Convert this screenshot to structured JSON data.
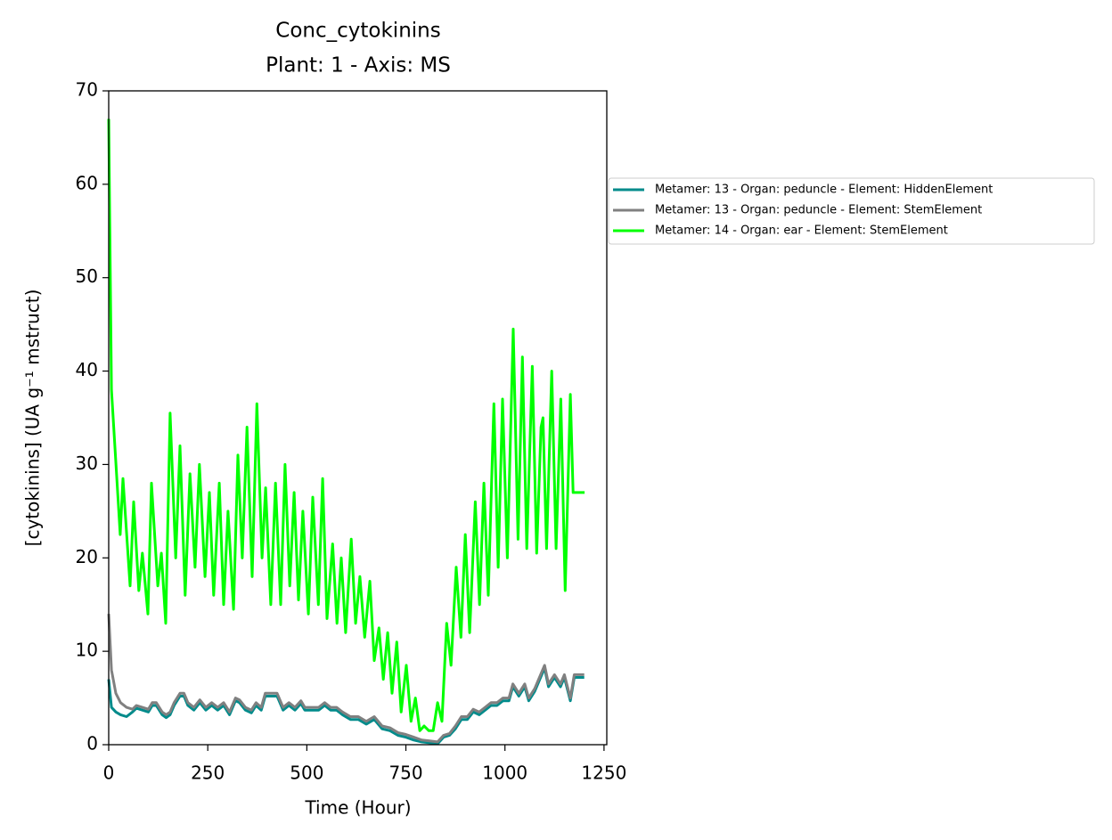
{
  "chart_data": {
    "type": "line",
    "title": "Conc_cytokinins",
    "subtitle": "Plant: 1 - Axis: MS",
    "x_label": "Time (Hour)",
    "y_label": "[cytokinins] (UA g⁻¹ mstruct)",
    "xlim": [
      0,
      1257
    ],
    "ylim": [
      0,
      70
    ],
    "xticks": [
      0,
      250,
      500,
      750,
      1000,
      1250
    ],
    "yticks": [
      0,
      10,
      20,
      30,
      40,
      50,
      60,
      70
    ],
    "grid": false,
    "legend": "outside upper right",
    "series": [
      {
        "name": "Metamer: 13 - Organ: peduncle - Element: HiddenElement",
        "color": "#008b8b",
        "x": [
          0,
          7,
          18,
          30,
          45,
          60,
          70,
          85,
          100,
          110,
          120,
          135,
          145,
          155,
          165,
          180,
          190,
          200,
          215,
          230,
          245,
          260,
          275,
          290,
          305,
          320,
          330,
          345,
          360,
          372,
          385,
          395,
          410,
          425,
          440,
          455,
          470,
          485,
          495,
          510,
          530,
          545,
          560,
          575,
          590,
          610,
          630,
          650,
          670,
          690,
          710,
          730,
          750,
          770,
          790,
          810,
          830,
          845,
          860,
          875,
          890,
          905,
          920,
          935,
          950,
          965,
          980,
          995,
          1010,
          1020,
          1035,
          1050,
          1060,
          1075,
          1090,
          1100,
          1110,
          1125,
          1140,
          1150,
          1165,
          1175,
          1200
        ],
        "values": [
          7,
          4,
          3.5,
          3.2,
          3,
          3.5,
          3.9,
          3.7,
          3.5,
          4.2,
          4.2,
          3.2,
          2.9,
          3.2,
          4.2,
          5.2,
          5.2,
          4.2,
          3.7,
          4.5,
          3.7,
          4.2,
          3.7,
          4.2,
          3.2,
          4.7,
          4.5,
          3.7,
          3.4,
          4.2,
          3.7,
          5.2,
          5.2,
          5.2,
          3.7,
          4.2,
          3.7,
          4.4,
          3.7,
          3.7,
          3.7,
          4.2,
          3.7,
          3.7,
          3.2,
          2.7,
          2.7,
          2.2,
          2.7,
          1.7,
          1.5,
          1,
          0.8,
          0.5,
          0.3,
          0.2,
          0.1,
          0.8,
          1,
          1.7,
          2.7,
          2.7,
          3.5,
          3.2,
          3.7,
          4.2,
          4.2,
          4.7,
          4.7,
          6.2,
          5.2,
          6.2,
          4.7,
          5.7,
          7.2,
          8.2,
          6.2,
          7.2,
          6.2,
          7.2,
          4.7,
          7.2,
          7.2
        ]
      },
      {
        "name": "Metamer: 13 - Organ: peduncle - Element: StemElement",
        "color": "#808080",
        "x": [
          0,
          7,
          18,
          30,
          45,
          60,
          70,
          85,
          100,
          110,
          120,
          135,
          145,
          155,
          165,
          180,
          190,
          200,
          215,
          230,
          245,
          260,
          275,
          290,
          305,
          320,
          330,
          345,
          360,
          372,
          385,
          395,
          410,
          425,
          440,
          455,
          470,
          485,
          495,
          510,
          530,
          545,
          560,
          575,
          590,
          610,
          630,
          650,
          670,
          690,
          710,
          730,
          750,
          770,
          790,
          810,
          830,
          845,
          860,
          875,
          890,
          905,
          920,
          935,
          950,
          965,
          980,
          995,
          1010,
          1020,
          1035,
          1050,
          1060,
          1075,
          1090,
          1100,
          1110,
          1125,
          1140,
          1150,
          1165,
          1175,
          1200
        ],
        "values": [
          14,
          8,
          5.5,
          4.5,
          4,
          3.8,
          4.2,
          4,
          3.8,
          4.5,
          4.5,
          3.5,
          3.2,
          3.5,
          4.5,
          5.5,
          5.5,
          4.5,
          4,
          4.8,
          4,
          4.5,
          4,
          4.5,
          3.5,
          5,
          4.8,
          4,
          3.7,
          4.5,
          4,
          5.5,
          5.5,
          5.5,
          4,
          4.5,
          4,
          4.7,
          4,
          4,
          4,
          4.5,
          4,
          4,
          3.5,
          3,
          3,
          2.5,
          3,
          2,
          1.8,
          1.3,
          1.1,
          0.8,
          0.5,
          0.4,
          0.3,
          1,
          1.2,
          2,
          3,
          3,
          3.8,
          3.5,
          4,
          4.5,
          4.5,
          5,
          5,
          6.5,
          5.5,
          6.5,
          5,
          6,
          7.5,
          8.5,
          6.5,
          7.5,
          6.5,
          7.5,
          5,
          7.5,
          7.5
        ]
      },
      {
        "name": "Metamer: 14 - Organ: ear - Element: StemElement",
        "color": "#00ff00",
        "x": [
          0,
          7,
          29,
          36,
          54,
          63,
          76,
          85,
          99,
          108,
          124,
          133,
          144,
          155,
          169,
          180,
          193,
          205,
          218,
          229,
          243,
          254,
          265,
          279,
          290,
          301,
          315,
          326,
          337,
          349,
          362,
          374,
          387,
          396,
          409,
          421,
          434,
          445,
          457,
          468,
          479,
          490,
          504,
          515,
          529,
          540,
          551,
          565,
          576,
          587,
          598,
          612,
          623,
          634,
          646,
          659,
          670,
          682,
          693,
          704,
          715,
          727,
          738,
          751,
          763,
          774,
          785,
          796,
          808,
          819,
          830,
          841,
          853,
          864,
          877,
          889,
          900,
          911,
          925,
          936,
          947,
          958,
          972,
          983,
          994,
          1006,
          1021,
          1033,
          1044,
          1055,
          1069,
          1080,
          1091,
          1096,
          1105,
          1118,
          1129,
          1141,
          1152,
          1165,
          1172,
          1201
        ],
        "values": [
          67,
          38,
          22.5,
          28.5,
          17,
          26,
          16.5,
          20.5,
          14,
          28,
          17,
          20.5,
          13,
          35.5,
          20,
          32,
          16,
          29,
          19,
          30,
          18,
          27,
          16,
          28,
          15,
          25,
          14.5,
          31,
          20,
          34,
          18,
          36.5,
          20,
          27.5,
          15,
          28,
          15,
          30,
          17,
          27,
          15.5,
          25,
          14,
          26.5,
          15,
          28.5,
          13.5,
          21.5,
          13,
          20,
          12,
          22,
          13,
          18,
          11.5,
          17.5,
          9,
          12.5,
          7,
          12,
          5.5,
          11,
          3.5,
          8.5,
          2.5,
          5,
          1.5,
          2,
          1.5,
          1.5,
          4.5,
          2.5,
          13,
          8.5,
          19,
          11.5,
          22.5,
          12,
          26,
          15,
          28,
          16,
          36.5,
          19,
          37,
          20,
          44.5,
          22,
          41.5,
          21,
          40.5,
          20.5,
          34,
          35,
          21,
          40,
          21,
          37,
          16.5,
          37.5,
          27,
          27
        ]
      }
    ]
  }
}
